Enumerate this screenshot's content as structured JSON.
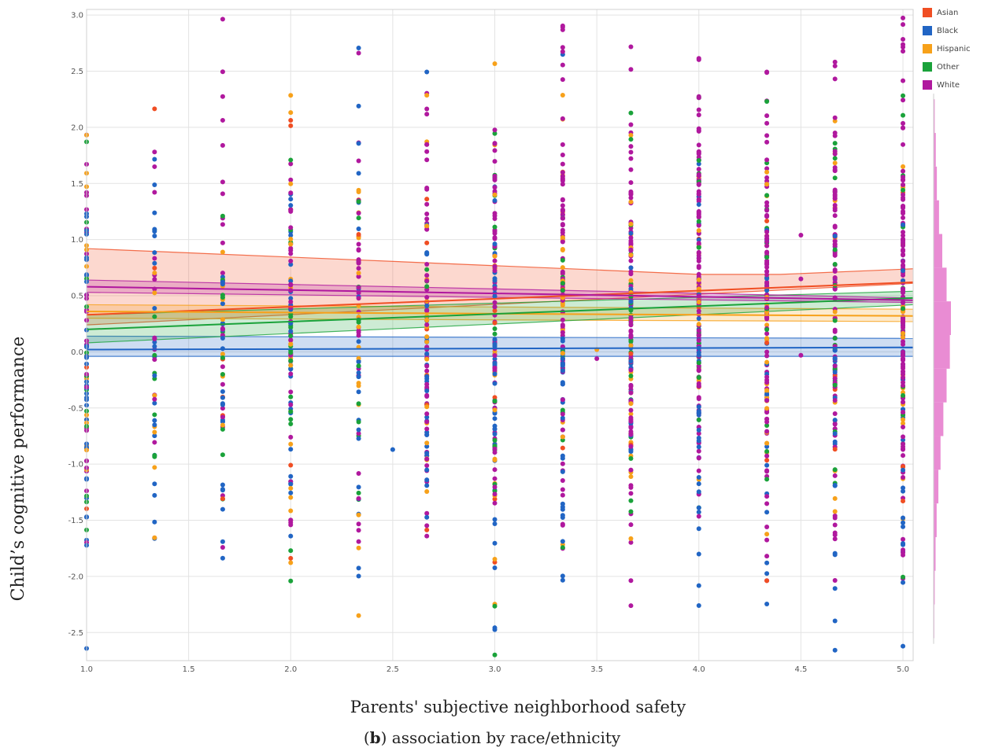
{
  "chart_data": {
    "type": "scatter",
    "xlabel": "Parents' subjective neighborhood safety",
    "ylabel": "Child’s cognitive performance",
    "xlim": [
      1.0,
      5.05
    ],
    "ylim": [
      -2.75,
      3.05
    ],
    "x_ticks": [
      "1.0",
      "1.5",
      "2.0",
      "2.5",
      "3.0",
      "3.5",
      "4.0",
      "4.5",
      "5.0"
    ],
    "y_ticks": [
      "3.0",
      "2.5",
      "2.0",
      "1.5",
      "1.0",
      "0.5",
      "0.0",
      "-0.5",
      "-1.0",
      "-1.5",
      "-2.0",
      "-2.5"
    ],
    "grid": true,
    "legend_position": "top-right",
    "x_levels": [
      1.0,
      1.333,
      1.667,
      2.0,
      2.333,
      2.667,
      3.0,
      3.333,
      3.667,
      4.0,
      4.333,
      4.667,
      5.0
    ],
    "series": [
      {
        "name": "Asian",
        "color": "#f04e23",
        "fit_line": [
          [
            1.0,
            0.33
          ],
          [
            5.05,
            0.62
          ]
        ],
        "ci_band": {
          "upper": [
            [
              1.0,
              0.92
            ],
            [
              3.5,
              0.73
            ],
            [
              4.0,
              0.69
            ],
            [
              4.4,
              0.69
            ],
            [
              5.05,
              0.74
            ]
          ],
          "lower": [
            [
              1.0,
              0.24
            ],
            [
              5.05,
              0.61
            ]
          ]
        }
      },
      {
        "name": "Black",
        "color": "#2165c4",
        "fit_line": [
          [
            1.0,
            0.02
          ],
          [
            5.05,
            0.04
          ]
        ],
        "ci_band": {
          "upper": [
            [
              1.0,
              0.14
            ],
            [
              5.05,
              0.12
            ]
          ],
          "lower": [
            [
              1.0,
              -0.04
            ],
            [
              5.05,
              -0.04
            ]
          ]
        }
      },
      {
        "name": "Hispanic",
        "color": "#f7a11a",
        "fit_line": [
          [
            1.0,
            0.36
          ],
          [
            5.05,
            0.32
          ]
        ],
        "ci_band": {
          "upper": [
            [
              1.0,
              0.42
            ],
            [
              5.05,
              0.38
            ]
          ],
          "lower": [
            [
              1.0,
              0.3
            ],
            [
              5.05,
              0.27
            ]
          ]
        }
      },
      {
        "name": "Other",
        "color": "#1aa23a",
        "fit_line": [
          [
            1.0,
            0.2
          ],
          [
            5.05,
            0.48
          ]
        ],
        "ci_band": {
          "upper": [
            [
              1.0,
              0.33
            ],
            [
              5.05,
              0.54
            ]
          ],
          "lower": [
            [
              1.0,
              0.08
            ],
            [
              5.05,
              0.42
            ]
          ]
        }
      },
      {
        "name": "White",
        "color": "#b0189e",
        "fit_line": [
          [
            1.0,
            0.58
          ],
          [
            5.05,
            0.46
          ]
        ],
        "ci_band": {
          "upper": [
            [
              1.0,
              0.64
            ],
            [
              5.05,
              0.48
            ]
          ],
          "lower": [
            [
              1.0,
              0.53
            ],
            [
              5.05,
              0.44
            ]
          ]
        }
      }
    ],
    "histogram": {
      "orientation": "vertical",
      "color": "#e46fc8",
      "bins_y": [
        [
          2.1,
          0.05
        ],
        [
          1.8,
          0.1
        ],
        [
          1.5,
          0.15
        ],
        [
          1.2,
          0.25
        ],
        [
          0.9,
          0.4
        ],
        [
          0.6,
          0.6
        ],
        [
          0.3,
          0.8
        ],
        [
          0.0,
          0.75
        ],
        [
          -0.3,
          0.6
        ],
        [
          -0.6,
          0.45
        ],
        [
          -0.9,
          0.32
        ],
        [
          -1.2,
          0.22
        ],
        [
          -1.5,
          0.14
        ],
        [
          -1.8,
          0.09
        ],
        [
          -2.1,
          0.05
        ],
        [
          -2.4,
          0.03
        ]
      ]
    },
    "outliers": [
      {
        "x": 2.5,
        "y": -0.87,
        "series": "Black"
      },
      {
        "x": 3.5,
        "y": 0.02,
        "series": "Hispanic"
      },
      {
        "x": 3.5,
        "y": -0.06,
        "series": "White"
      },
      {
        "x": 4.5,
        "y": 1.04,
        "series": "White"
      },
      {
        "x": 4.5,
        "y": 0.65,
        "series": "White"
      },
      {
        "x": 4.5,
        "y": -0.03,
        "series": "White"
      }
    ]
  },
  "caption": {
    "bold": "b",
    "prefix": "(",
    "suffix": ") association by race/ethnicity"
  }
}
